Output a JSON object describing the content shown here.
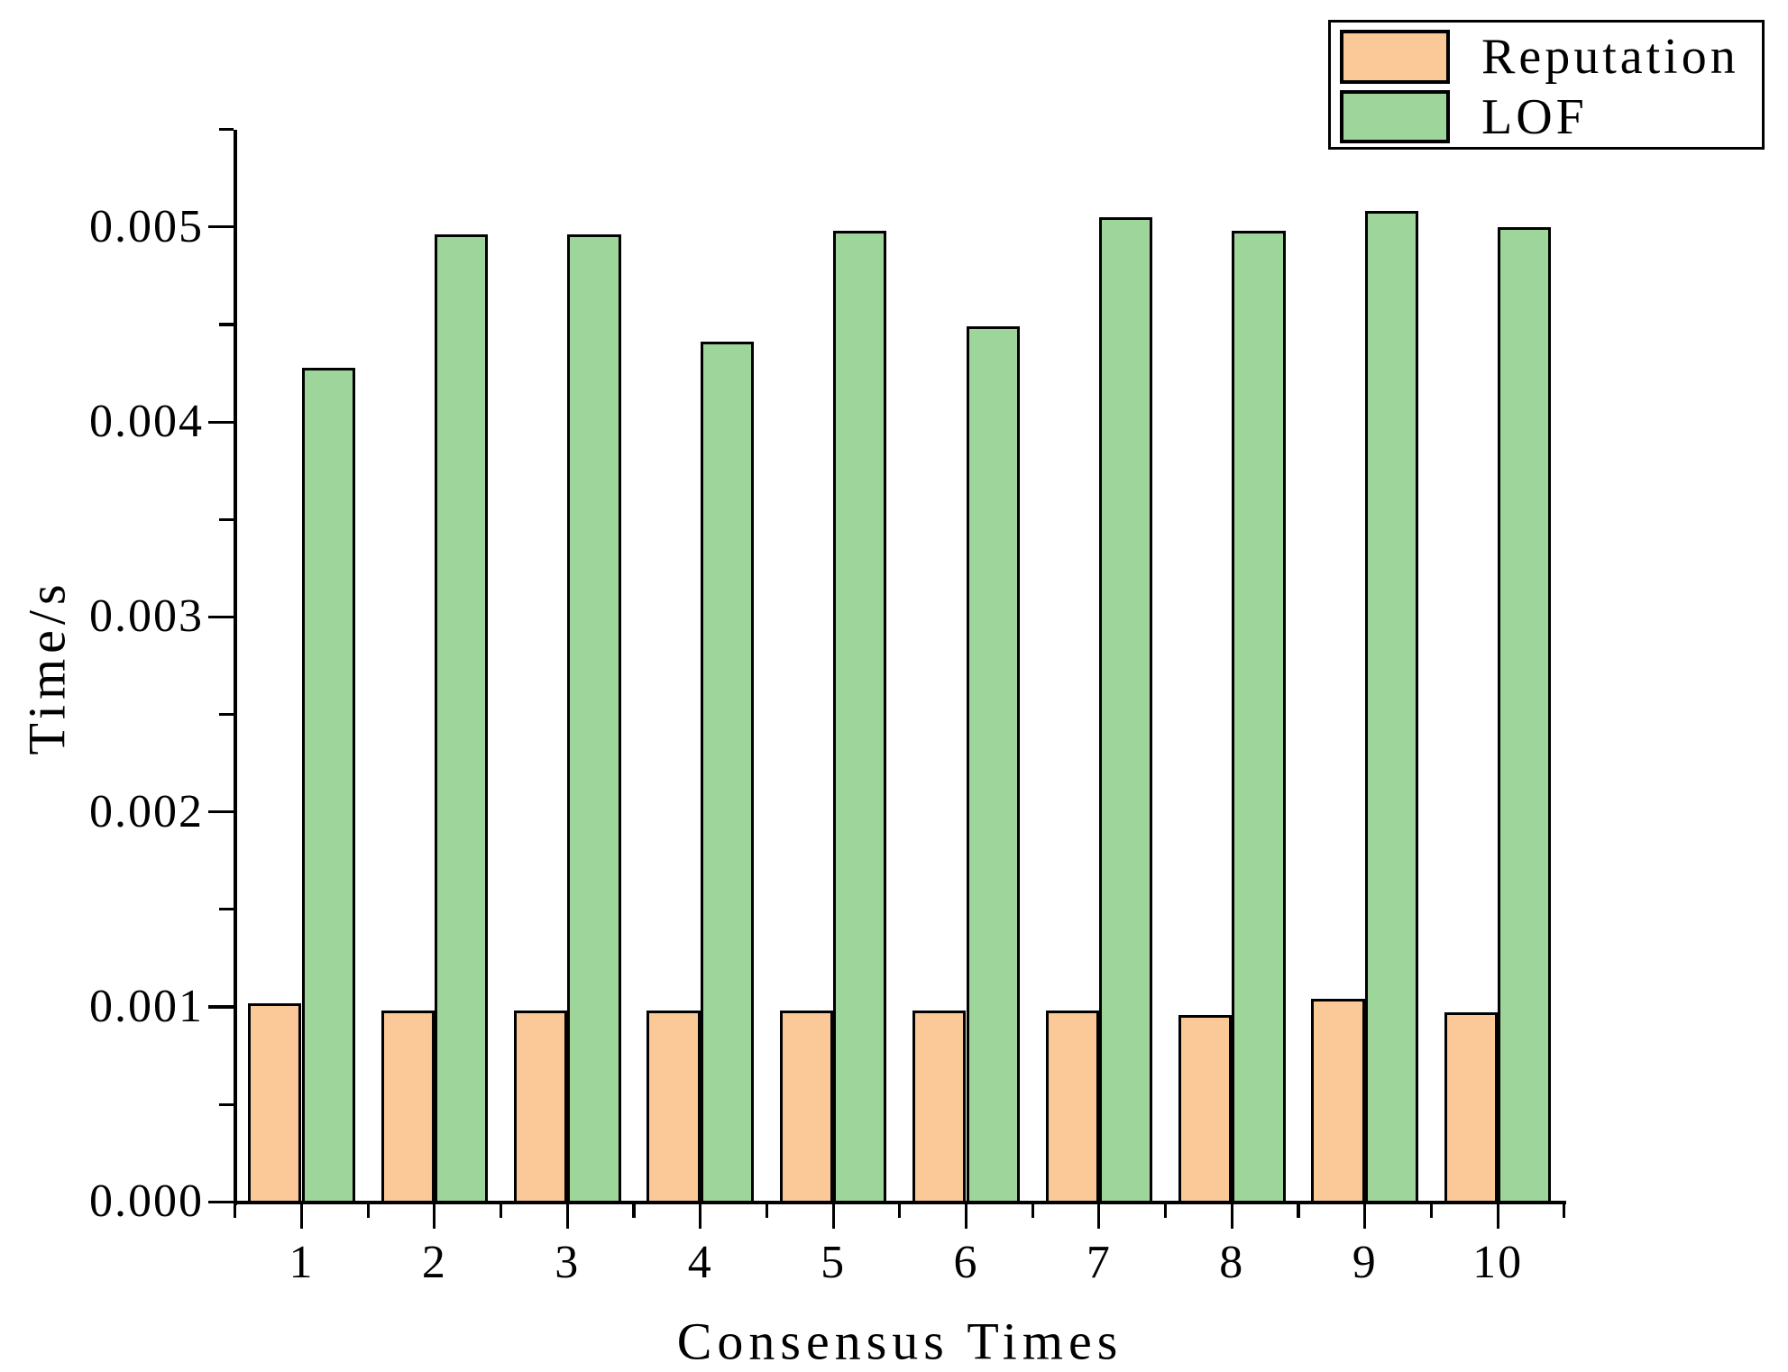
{
  "figure": {
    "background": "#ffffff",
    "axis_color": "#000000"
  },
  "legend": {
    "items": [
      {
        "label": "Reputation",
        "color": "#FBC898"
      },
      {
        "label": "LOF",
        "color": "#9DD59B"
      }
    ]
  },
  "chart_data": {
    "type": "bar",
    "title": "",
    "xlabel": "Consensus Times",
    "ylabel": "Time/s",
    "categories": [
      "1",
      "2",
      "3",
      "4",
      "5",
      "6",
      "7",
      "8",
      "9",
      "10"
    ],
    "series": [
      {
        "name": "Reputation",
        "color": "#FBC898",
        "edge_color": "#000000",
        "values": [
          0.00102,
          0.00098,
          0.00098,
          0.00098,
          0.00098,
          0.00098,
          0.00098,
          0.00096,
          0.00104,
          0.00097
        ]
      },
      {
        "name": "LOF",
        "color": "#9DD59B",
        "edge_color": "#000000",
        "values": [
          0.00428,
          0.00496,
          0.00496,
          0.00441,
          0.00498,
          0.00449,
          0.00505,
          0.00498,
          0.00508,
          0.005
        ]
      }
    ],
    "ylim": [
      0,
      0.0055
    ],
    "xlim": [
      0.5,
      10.5
    ],
    "y_major_ticks": [
      0,
      0.001,
      0.002,
      0.003,
      0.004,
      0.005
    ],
    "y_tick_labels": [
      "0.000",
      "0.001",
      "0.002",
      "0.003",
      "0.004",
      "0.005"
    ],
    "y_minor_ticks": [
      0.0005,
      0.0015,
      0.0025,
      0.0035,
      0.0045,
      0.0055
    ],
    "x_minor_ticks": [
      0.5,
      1.5,
      2.5,
      3.5,
      4.5,
      5.5,
      6.5,
      7.5,
      8.5,
      9.5,
      10.5
    ],
    "grid": false,
    "legend_position": "upper-right",
    "bar_group_width": 0.8
  }
}
